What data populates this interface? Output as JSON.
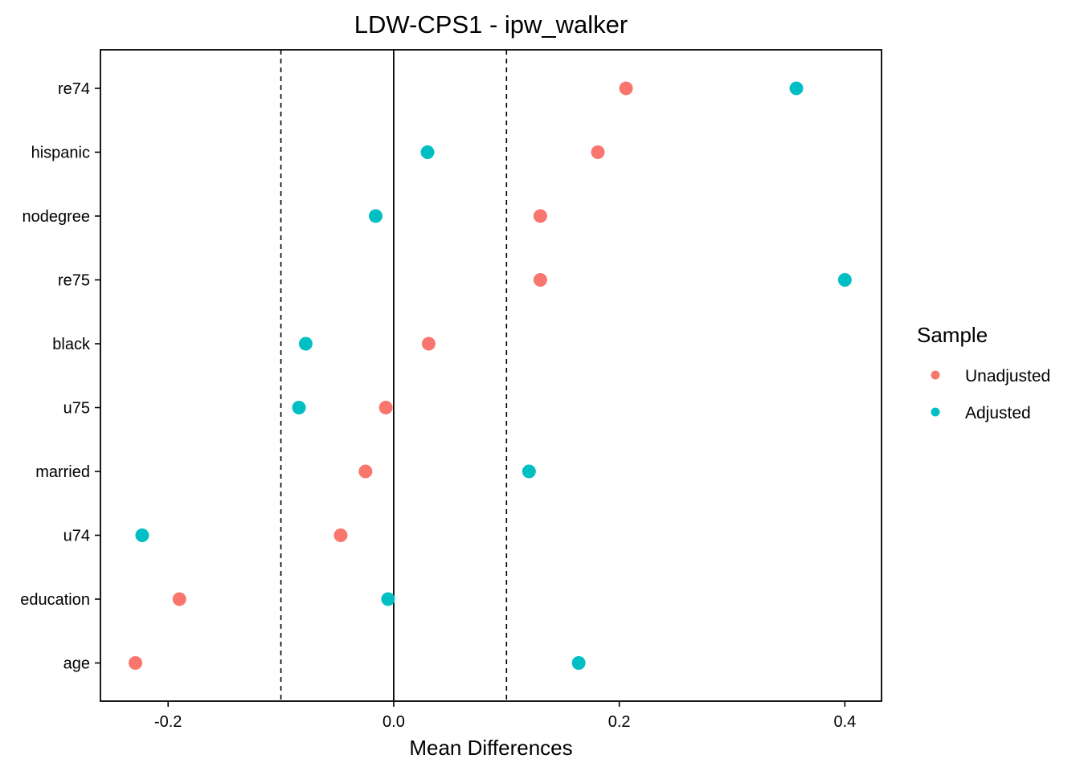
{
  "chart_data": {
    "type": "scatter",
    "title": "LDW-CPS1 - ipw_walker",
    "xlabel": "Mean Differences",
    "ylabel": "",
    "xlim": [
      -0.26,
      0.4325
    ],
    "x_ticks": [
      -0.2,
      0.0,
      0.2,
      0.4
    ],
    "x_tick_labels": [
      "-0.2",
      "0.0",
      "0.2",
      "0.4"
    ],
    "categories": [
      "re74",
      "hispanic",
      "nodegree",
      "re75",
      "black",
      "u75",
      "married",
      "u74",
      "education",
      "age"
    ],
    "series": [
      {
        "name": "Unadjusted",
        "color": "#F8766D",
        "values": [
          0.206,
          0.181,
          0.13,
          0.13,
          0.031,
          -0.007,
          -0.025,
          -0.047,
          -0.19,
          -0.229
        ]
      },
      {
        "name": "Adjusted",
        "color": "#00BFC4",
        "values": [
          0.357,
          0.03,
          -0.016,
          0.4,
          -0.078,
          -0.084,
          0.12,
          -0.223,
          -0.005,
          0.164
        ]
      }
    ],
    "reference_lines": {
      "solid": [
        0.0
      ],
      "dashed": [
        -0.1,
        0.1
      ]
    },
    "grid": false,
    "legend": {
      "title": "Sample",
      "placement": "right",
      "entries": [
        "Unadjusted",
        "Adjusted"
      ]
    }
  }
}
